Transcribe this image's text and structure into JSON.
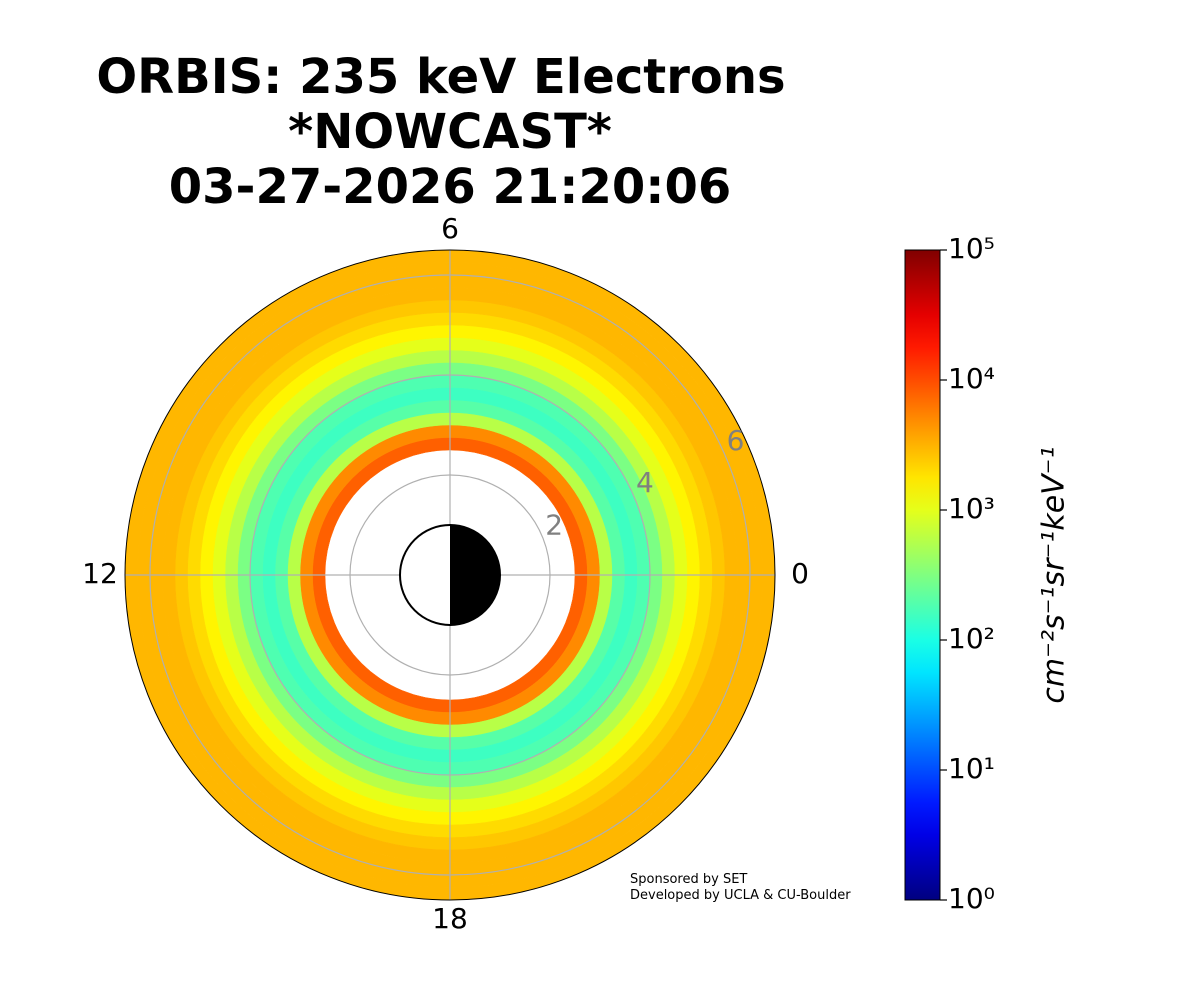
{
  "chart_data": {
    "type": "polar-rings",
    "title": [
      "ORBIS: 235 keV Electrons",
      "*NOWCAST*",
      "03-27-2026 21:20:06"
    ],
    "r_bins": [
      2.5,
      2.75,
      3.0,
      3.25,
      3.5,
      3.75,
      4.0,
      4.25,
      4.5,
      4.75,
      5.0,
      5.25,
      5.5,
      5.75,
      6.0,
      6.25,
      6.5
    ],
    "values": [
      8000,
      5000,
      600,
      200,
      150,
      180,
      300,
      600,
      1000,
      1500,
      2000,
      2500,
      3000,
      3000,
      3000,
      3000
    ],
    "rlim": [
      0,
      6.5
    ],
    "rticks": [
      2,
      4,
      6
    ],
    "theta_ticks": [
      0,
      6,
      12,
      18
    ],
    "theta_period": 24,
    "grid": true,
    "colormap": "jet",
    "log_color": true,
    "clim": [
      1,
      100000
    ],
    "cticks": [
      {
        "value": 1,
        "label": "10⁰"
      },
      {
        "value": 10,
        "label": "10¹"
      },
      {
        "value": 100,
        "label": "10²"
      },
      {
        "value": 1000,
        "label": "10³"
      },
      {
        "value": 10000,
        "label": "10⁴"
      },
      {
        "value": 100000,
        "label": "10⁵"
      }
    ],
    "colorbar_label": "cm⁻²s⁻¹sr⁻¹keV⁻¹",
    "credits": [
      "Sponsored by SET",
      "Developed by UCLA & CU-Boulder"
    ]
  }
}
